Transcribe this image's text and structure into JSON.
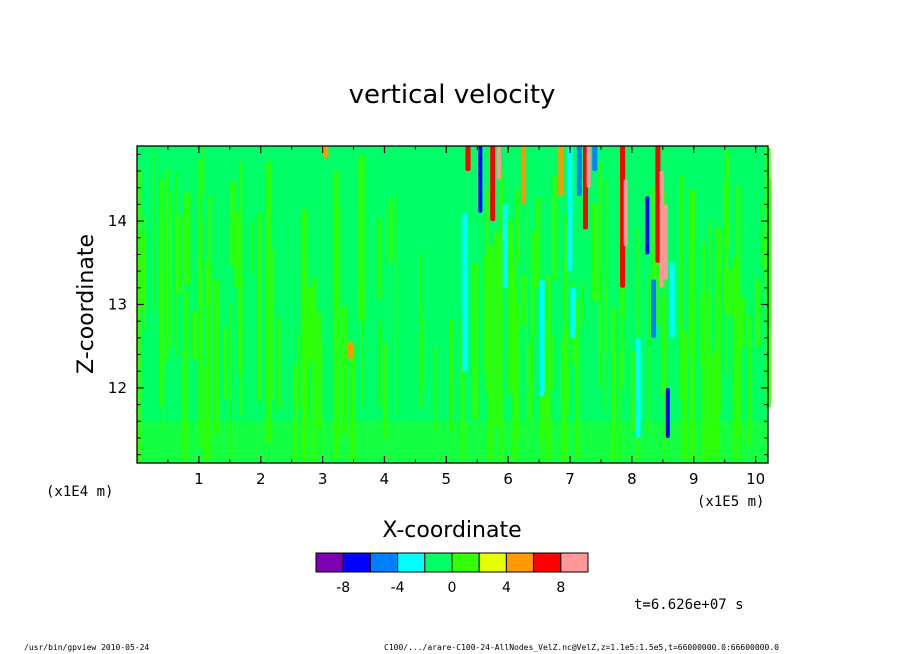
{
  "chart_data": {
    "type": "heatmap",
    "title": "vertical velocity",
    "xlabel": "X-coordinate",
    "ylabel": "Z-coordinate",
    "x_unit_left": "(x1E4 m)",
    "x_unit_right": "(x1E5 m)",
    "xlim": [
      0,
      10.2
    ],
    "ylim": [
      11.1,
      14.9
    ],
    "x_ticks": [
      "1",
      "2",
      "3",
      "4",
      "5",
      "6",
      "7",
      "8",
      "9",
      "10"
    ],
    "y_ticks": [
      "12",
      "13",
      "14"
    ],
    "x_tick_values": [
      1,
      2,
      3,
      4,
      5,
      6,
      7,
      8,
      9,
      10
    ],
    "y_tick_values": [
      12,
      13,
      14
    ],
    "colorbar": {
      "levels": [
        -10,
        -8,
        -6,
        -4,
        -2,
        0,
        2,
        4,
        6,
        8,
        10
      ],
      "colors": [
        "#7f00b2",
        "#0000ff",
        "#0080ff",
        "#00ffff",
        "#00ff66",
        "#33ff00",
        "#e6ff00",
        "#ff9900",
        "#ff0000",
        "#ff9999"
      ],
      "tick_labels": [
        "-8",
        "-4",
        "0",
        "4",
        "8"
      ],
      "tick_values": [
        -8,
        -4,
        0,
        4,
        8
      ]
    },
    "background": {
      "colors": [
        "#00ff66",
        "#33ff00"
      ]
    },
    "features": [
      {
        "x": 3.45,
        "z0": 12.35,
        "z1": 12.55,
        "v": 4
      },
      {
        "x": 3.05,
        "z0": 14.75,
        "z1": 14.9,
        "v": 4
      },
      {
        "x": 5.3,
        "z0": 12.2,
        "z1": 14.1,
        "v": -4
      },
      {
        "x": 5.35,
        "z0": 14.6,
        "z1": 14.9,
        "v": 6
      },
      {
        "x": 5.55,
        "z0": 14.1,
        "z1": 14.9,
        "v": -8
      },
      {
        "x": 5.75,
        "z0": 14.0,
        "z1": 14.9,
        "v": 6
      },
      {
        "x": 5.85,
        "z0": 14.5,
        "z1": 14.9,
        "v": 8
      },
      {
        "x": 5.95,
        "z0": 13.2,
        "z1": 14.2,
        "v": -4
      },
      {
        "x": 6.25,
        "z0": 14.2,
        "z1": 14.9,
        "v": 4
      },
      {
        "x": 6.55,
        "z0": 11.9,
        "z1": 13.3,
        "v": -4
      },
      {
        "x": 6.85,
        "z0": 14.3,
        "z1": 14.9,
        "v": 4
      },
      {
        "x": 7.0,
        "z0": 13.4,
        "z1": 14.9,
        "v": -4
      },
      {
        "x": 7.05,
        "z0": 12.6,
        "z1": 13.2,
        "v": -4
      },
      {
        "x": 7.15,
        "z0": 14.3,
        "z1": 14.9,
        "v": -6
      },
      {
        "x": 7.25,
        "z0": 13.9,
        "z1": 14.9,
        "v": 6
      },
      {
        "x": 7.3,
        "z0": 14.4,
        "z1": 14.9,
        "v": 8
      },
      {
        "x": 7.4,
        "z0": 14.6,
        "z1": 14.9,
        "v": -6
      },
      {
        "x": 7.85,
        "z0": 13.2,
        "z1": 14.9,
        "v": 6
      },
      {
        "x": 7.9,
        "z0": 13.7,
        "z1": 14.5,
        "v": 8
      },
      {
        "x": 8.1,
        "z0": 11.4,
        "z1": 12.6,
        "v": -4
      },
      {
        "x": 8.25,
        "z0": 13.6,
        "z1": 14.3,
        "v": -8
      },
      {
        "x": 8.35,
        "z0": 12.6,
        "z1": 13.3,
        "v": -6
      },
      {
        "x": 8.42,
        "z0": 13.5,
        "z1": 14.9,
        "v": 6
      },
      {
        "x": 8.48,
        "z0": 13.2,
        "z1": 14.6,
        "v": 8
      },
      {
        "x": 8.55,
        "z0": 13.3,
        "z1": 14.2,
        "v": 10
      },
      {
        "x": 8.58,
        "z0": 11.4,
        "z1": 12.0,
        "v": -8
      },
      {
        "x": 8.65,
        "z0": 12.6,
        "z1": 13.5,
        "v": -4
      }
    ]
  },
  "annotation": "t=6.626e+07 s",
  "footer": {
    "left": "/usr/bin/gpview  2010-05-24",
    "right": "C100/.../arare-C100-24-AllNodes_VelZ.nc@VelZ,z=1.1e5:1.5e5,t=66000000.0:66600000.0"
  }
}
